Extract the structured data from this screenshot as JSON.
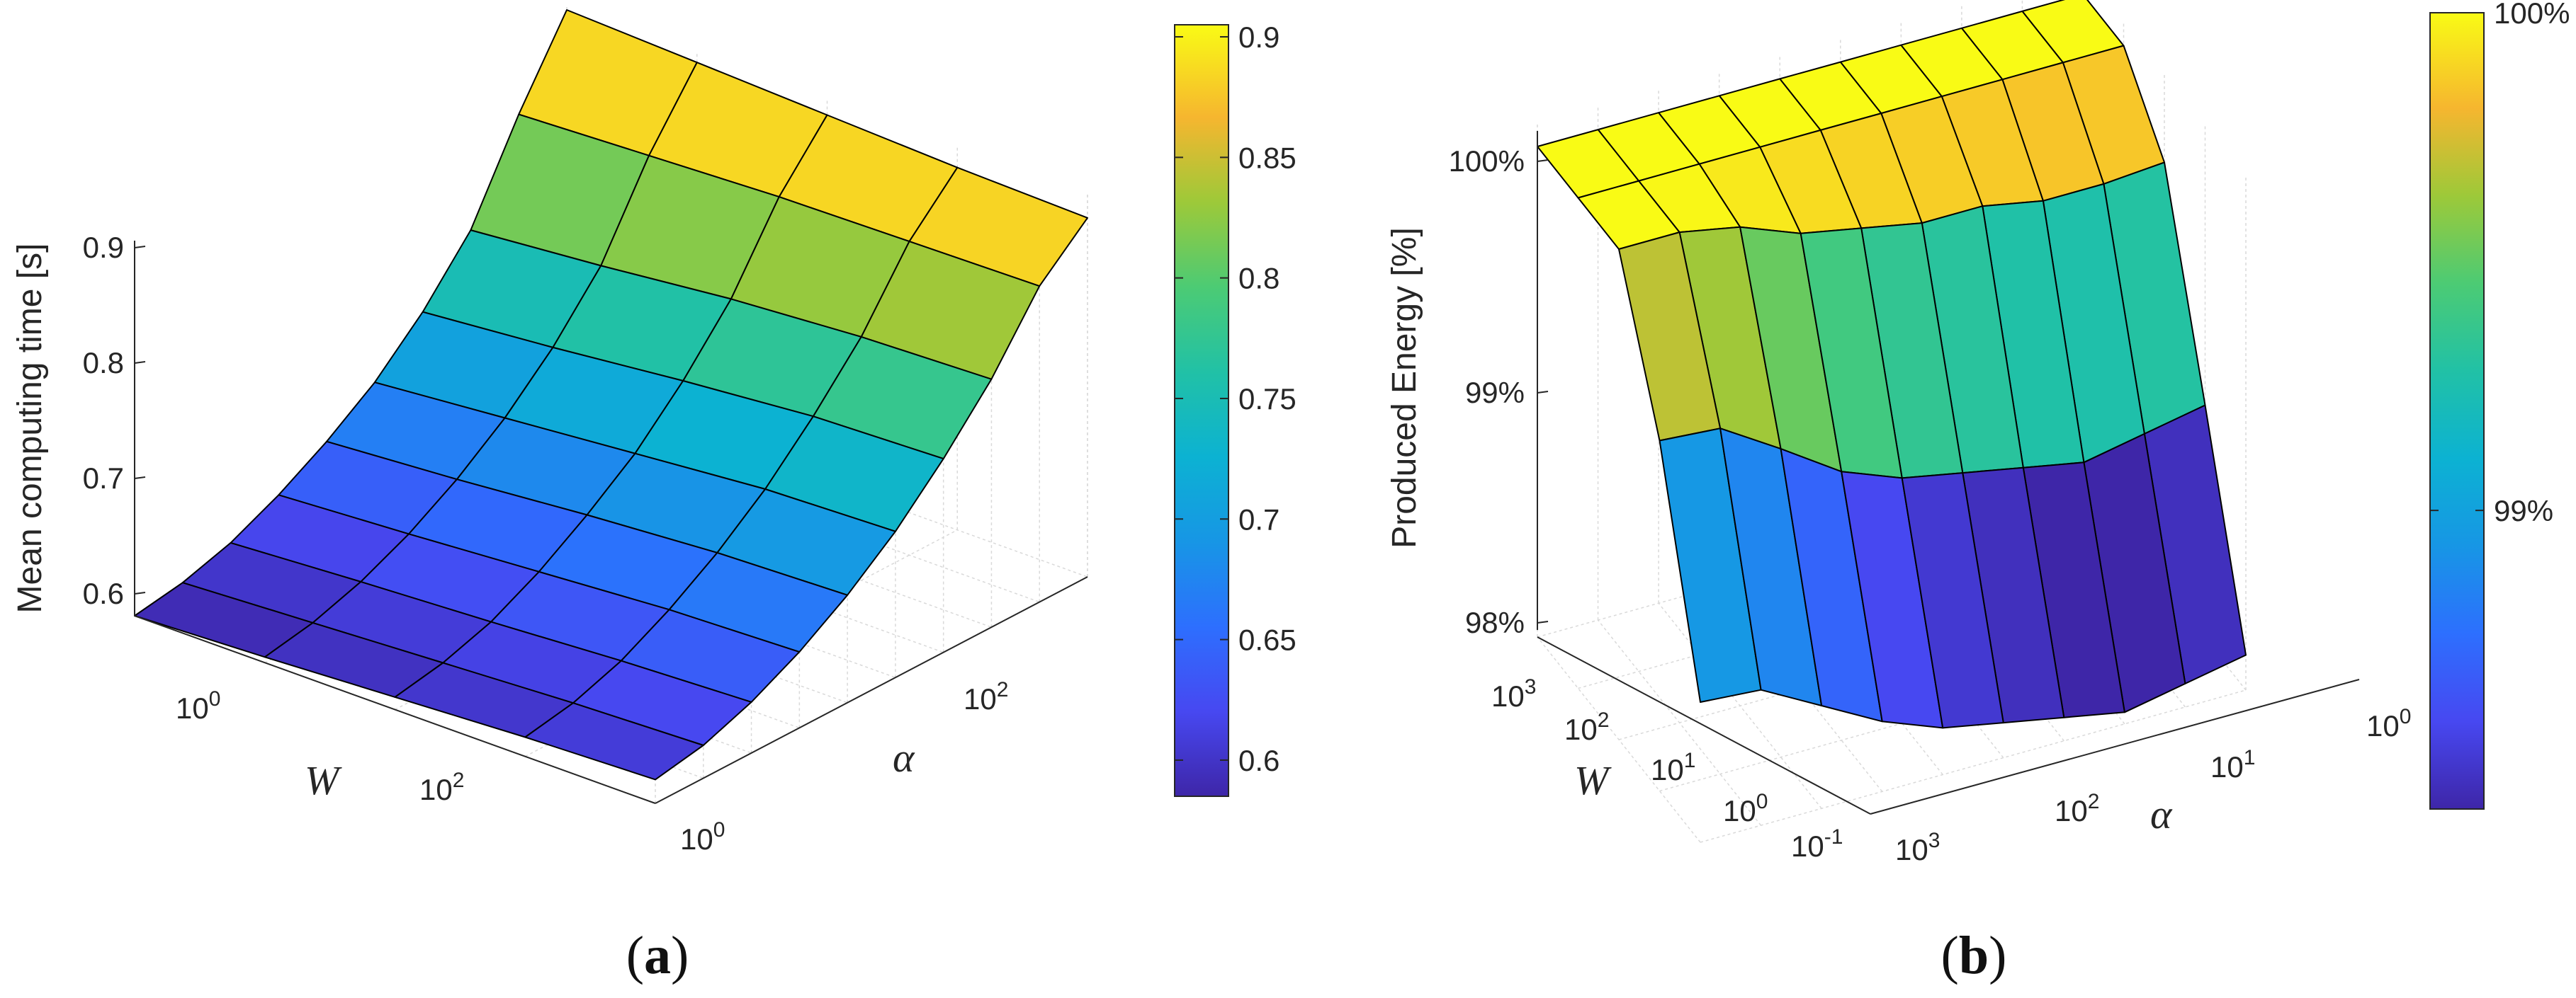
{
  "chart_data": [
    {
      "id": "a",
      "type": "surface",
      "panel_label": "(a)",
      "panel_letter": "a",
      "zlabel": "Mean computing time [s]",
      "xlabel": "W",
      "ylabel": "α",
      "z_ticks": [
        "0.9",
        "0.8",
        "0.7",
        "0.6"
      ],
      "x_ticks": [
        "10",
        "10"
      ],
      "x_tick_exponents": [
        "0",
        "2"
      ],
      "y_ticks": [
        "10",
        "10"
      ],
      "y_tick_exponents": [
        "0",
        "2"
      ],
      "zlim": [
        0.585,
        0.925
      ],
      "W_values": [
        0.1,
        1,
        10,
        100,
        1000
      ],
      "alpha_values": [
        1,
        2,
        5,
        10,
        20,
        50,
        100,
        200,
        500,
        1000
      ],
      "z": [
        [
          0.585,
          0.592,
          0.605,
          0.625,
          0.65,
          0.68,
          0.72,
          0.77,
          0.85,
          0.92
        ],
        [
          0.59,
          0.598,
          0.612,
          0.632,
          0.658,
          0.69,
          0.73,
          0.78,
          0.855,
          0.915
        ],
        [
          0.596,
          0.604,
          0.618,
          0.64,
          0.668,
          0.7,
          0.742,
          0.792,
          0.86,
          0.91
        ],
        [
          0.602,
          0.61,
          0.625,
          0.648,
          0.676,
          0.71,
          0.752,
          0.8,
          0.862,
          0.905
        ],
        [
          0.606,
          0.614,
          0.63,
          0.652,
          0.68,
          0.714,
          0.756,
          0.804,
          0.864,
          0.902
        ]
      ],
      "colorbar": {
        "ticks": [
          "0.9",
          "0.85",
          "0.8",
          "0.75",
          "0.7",
          "0.65",
          "0.6"
        ],
        "values": [
          0.9,
          0.85,
          0.8,
          0.75,
          0.7,
          0.65,
          0.6
        ],
        "range": [
          0.585,
          0.905
        ]
      }
    },
    {
      "id": "b",
      "type": "surface",
      "panel_label": "(b)",
      "panel_letter": "b",
      "zlabel": "Produced Energy [%]",
      "xlabel": "W",
      "ylabel": "α",
      "z_ticks": [
        "100%",
        "99%",
        "98%"
      ],
      "x_ticks": [
        "10",
        "10",
        "10",
        "10",
        "10"
      ],
      "x_tick_exponents": [
        "3",
        "2",
        "1",
        "0",
        "-1"
      ],
      "y_ticks": [
        "10",
        "10",
        "10",
        "10"
      ],
      "y_tick_exponents": [
        "3",
        "2",
        "1",
        "0"
      ],
      "zlim": [
        97.9,
        100.1
      ],
      "W_values": [
        0.1,
        1,
        10,
        100,
        1000
      ],
      "alpha_values": [
        1000,
        500,
        200,
        100,
        50,
        20,
        10,
        5,
        2,
        1
      ],
      "z": [
        [
          98.5,
          98.48,
          98.34,
          98.2,
          98.1,
          98.05,
          98.0,
          97.95,
          98.0,
          98.05
        ],
        [
          99.4,
          99.38,
          99.22,
          99.05,
          98.95,
          98.9,
          98.85,
          98.8,
          98.85,
          98.9
        ],
        [
          100.0,
          100.0,
          99.95,
          99.85,
          99.8,
          99.75,
          99.75,
          99.7,
          99.7,
          99.72
        ],
        [
          100.0,
          100.0,
          100.0,
          100.0,
          100.0,
          100.0,
          100.0,
          100.0,
          100.0,
          100.0
        ],
        [
          100.0,
          100.0,
          100.0,
          100.0,
          100.0,
          100.0,
          100.0,
          100.0,
          100.0,
          100.0
        ]
      ],
      "colorbar": {
        "ticks": [
          "100%",
          "99%"
        ],
        "values": [
          100,
          99
        ],
        "range": [
          98.4,
          100
        ]
      }
    }
  ]
}
